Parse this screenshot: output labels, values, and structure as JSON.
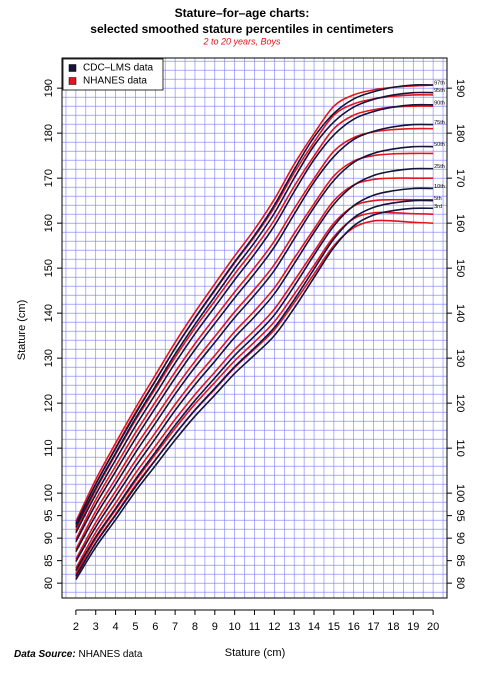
{
  "chart_data": {
    "type": "line",
    "title": "Stature–for–age charts:",
    "title_line2": "selected smoothed stature percentiles in centimeters",
    "subtitle": "2 to 20 years, Boys",
    "y_label": "Stature (cm)",
    "x_label": "Stature (cm)",
    "source_label": "Data Source:",
    "source": "NHANES data",
    "legend": "top-left",
    "grid": true,
    "grid_color": "#7b7bff",
    "x": [
      2,
      3,
      4,
      5,
      6,
      7,
      8,
      9,
      10,
      11,
      12,
      13,
      14,
      15,
      16,
      17,
      18,
      19,
      20
    ],
    "xlim": [
      1.3,
      20.7
    ],
    "ylim": [
      76.7,
      196.7
    ],
    "xticks": [
      2,
      3,
      4,
      5,
      6,
      7,
      8,
      9,
      10,
      11,
      12,
      13,
      14,
      15,
      16,
      17,
      18,
      19,
      20
    ],
    "yticks": [
      80,
      85,
      90,
      95,
      100,
      110,
      120,
      130,
      140,
      150,
      160,
      170,
      180,
      190
    ],
    "xgrid": [
      1.5,
      2,
      2.5,
      3,
      3.5,
      4,
      4.5,
      5,
      5.5,
      6,
      6.5,
      7,
      7.5,
      8,
      8.5,
      9,
      9.5,
      10,
      10.5,
      11,
      11.5,
      12,
      12.5,
      13,
      13.5,
      14,
      14.5,
      15,
      15.5,
      16,
      16.5,
      17,
      17.5,
      18,
      18.5,
      19,
      19.5,
      20,
      20.5
    ],
    "ygrid": [
      78,
      80,
      82,
      84,
      86,
      88,
      90,
      92,
      94,
      96,
      98,
      100,
      102,
      104,
      106,
      108,
      110,
      112,
      114,
      116,
      118,
      120,
      122,
      124,
      126,
      128,
      130,
      132,
      134,
      136,
      138,
      140,
      142,
      144,
      146,
      148,
      150,
      152,
      154,
      156,
      158,
      160,
      162,
      164,
      166,
      168,
      170,
      172,
      174,
      176,
      178,
      180,
      182,
      184,
      186,
      188,
      190,
      192,
      194,
      196
    ],
    "series": [
      {
        "name": "CDC–LMS data",
        "color": "#14143c",
        "curves": [
          {
            "label": "3rd",
            "values": [
              80.8,
              88.0,
              94.1,
              100.4,
              106.1,
              111.8,
              117.1,
              121.8,
              126.6,
              130.7,
              135.0,
              141.1,
              147.9,
              154.6,
              159.4,
              161.8,
              162.8,
              163.3,
              163.3
            ]
          },
          {
            "label": "5th",
            "values": [
              81.6,
              88.9,
              95.1,
              101.4,
              107.3,
              113.1,
              118.5,
              123.3,
              128.1,
              132.3,
              136.8,
              143.0,
              149.8,
              156.5,
              161.2,
              163.5,
              164.5,
              165.0,
              165.0
            ]
          },
          {
            "label": "10th",
            "values": [
              82.8,
              90.3,
              96.6,
              103.1,
              109.1,
              115.1,
              120.6,
              125.6,
              130.6,
              134.9,
              139.6,
              146.0,
              152.9,
              159.4,
              163.9,
              166.2,
              167.2,
              167.7,
              167.7
            ]
          },
          {
            "label": "25th",
            "values": [
              84.8,
              92.5,
              99.2,
              105.9,
              112.1,
              118.4,
              124.1,
              129.3,
              134.6,
              139.2,
              144.3,
              151.0,
              157.9,
              164.2,
              168.4,
              170.6,
              171.6,
              172.1,
              172.1
            ]
          },
          {
            "label": "50th",
            "values": [
              87,
              95,
              102,
              109,
              115.5,
              122,
              128,
              133.5,
              139,
              144,
              149.5,
              156.5,
              163.5,
              169.5,
              173.5,
              175.5,
              176.5,
              177,
              177
            ]
          },
          {
            "label": "75th",
            "values": [
              89.2,
              97.5,
              104.8,
              112.1,
              118.9,
              125.6,
              131.9,
              137.7,
              143.4,
              148.8,
              154.7,
              162.0,
              169.1,
              174.8,
              178.6,
              180.4,
              181.4,
              181.9,
              181.9
            ]
          },
          {
            "label": "90th",
            "values": [
              91.2,
              99.7,
              107.4,
              114.9,
              121.9,
              128.9,
              135.4,
              141.4,
              147.4,
              153.1,
              159.4,
              167.0,
              174.1,
              179.6,
              183.1,
              184.8,
              185.8,
              186.3,
              186.3
            ]
          },
          {
            "label": "95th",
            "values": [
              92.4,
              101.1,
              108.9,
              116.6,
              123.7,
              130.9,
              137.5,
              143.7,
              149.9,
              155.7,
              162.2,
              170.0,
              177.2,
              182.5,
              185.8,
              187.5,
              188.5,
              189.0,
              189.0
            ]
          },
          {
            "label": "97th",
            "values": [
              93.2,
              102.0,
              109.9,
              117.6,
              124.9,
              132.2,
              138.9,
              145.2,
              151.4,
              157.3,
              164.0,
              171.9,
              179.1,
              184.4,
              187.6,
              189.2,
              190.2,
              190.7,
              190.7
            ]
          }
        ]
      },
      {
        "name": "NHANES data",
        "color": "#e3141e",
        "curves": [
          {
            "values": [
              81.3,
              89.0,
              95.3,
              101.7,
              107.4,
              113.1,
              118.4,
              123.1,
              127.9,
              132.0,
              136.3,
              142.3,
              148.7,
              155.0,
              159.0,
              160.5,
              160.5,
              160.2,
              160.0
            ]
          },
          {
            "values": [
              82.1,
              89.9,
              96.3,
              102.7,
              108.6,
              114.4,
              119.8,
              124.6,
              129.4,
              133.6,
              138.1,
              144.2,
              150.6,
              157,
              161,
              162.3,
              162.3,
              162.1,
              162.0
            ]
          },
          {
            "values": [
              83.3,
              91.3,
              97.8,
              104.4,
              110.4,
              116.4,
              121.9,
              126.9,
              131.9,
              136.2,
              140.9,
              147.2,
              153.7,
              160,
              163.8,
              165,
              165.2,
              165.2,
              165.2
            ]
          },
          {
            "values": [
              85.3,
              93.5,
              100.4,
              107.2,
              113.4,
              119.7,
              125.4,
              130.6,
              135.9,
              140.5,
              145.6,
              152.2,
              158.7,
              165,
              168.5,
              169.7,
              170,
              170,
              170
            ]
          },
          {
            "values": [
              87.5,
              96.0,
              103.2,
              110.3,
              116.8,
              123.3,
              129.3,
              134.8,
              140.3,
              145.3,
              150.8,
              157.7,
              164.3,
              170.5,
              173.8,
              175,
              175.4,
              175.5,
              175.5
            ]
          },
          {
            "values": [
              89.7,
              98.5,
              106.0,
              113.4,
              120.2,
              126.9,
              133.2,
              139.0,
              144.7,
              150.1,
              156.0,
              163.2,
              169.9,
              176,
              179,
              180.3,
              180.8,
              181,
              181
            ]
          },
          {
            "values": [
              91.7,
              100.7,
              108.6,
              116.2,
              123.2,
              130.2,
              136.7,
              142.7,
              148.7,
              154.4,
              160.7,
              168.2,
              174.9,
              181,
              184,
              185.2,
              185.8,
              186,
              186
            ]
          },
          {
            "values": [
              92.9,
              102.1,
              110.1,
              117.9,
              125.0,
              132.2,
              138.8,
              145.0,
              151.2,
              157.0,
              163.5,
              171.2,
              178.0,
              184,
              186.5,
              187.6,
              188.2,
              188.5,
              188.5
            ]
          },
          {
            "values": [
              93.7,
              103.0,
              111.1,
              118.9,
              126.2,
              133.5,
              140.2,
              146.5,
              152.7,
              158.6,
              165.3,
              173.1,
              179.9,
              186,
              188.5,
              189.6,
              190.2,
              190.5,
              190.7
            ]
          }
        ]
      }
    ]
  }
}
